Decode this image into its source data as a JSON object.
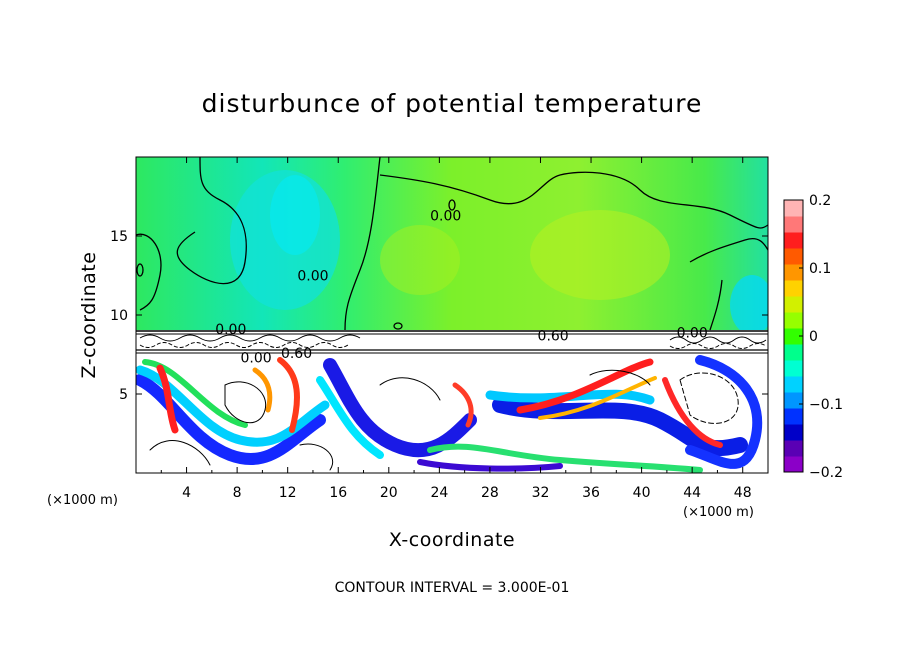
{
  "chart_data": {
    "type": "heatmap",
    "title": "disturbunce of potential temperature",
    "xlabel": "X-coordinate",
    "ylabel": "Z-coordinate",
    "x_unit_left": "(×1000 m)",
    "x_unit_right": "(×1000 m)",
    "xlim": [
      0,
      50
    ],
    "ylim": [
      0,
      20
    ],
    "x_ticks": [
      4,
      8,
      12,
      16,
      20,
      24,
      28,
      32,
      36,
      40,
      44,
      48
    ],
    "x_tick_labels": [
      "4",
      "8",
      "12",
      "16",
      "20",
      "24",
      "28",
      "32",
      "36",
      "40",
      "44",
      "48"
    ],
    "y_ticks": [
      5,
      10,
      15
    ],
    "y_tick_labels": [
      "5",
      "10",
      "15"
    ],
    "colorbar": {
      "range": [
        -0.2,
        0.2
      ],
      "ticks": [
        0.2,
        0.1,
        0,
        -0.1,
        -0.2
      ],
      "tick_labels": [
        "0.2",
        "0.1",
        "0",
        "−0.1",
        "−0.2"
      ],
      "colors": [
        "#8b00c8",
        "#5a00b4",
        "#0000c8",
        "#0032ff",
        "#0096ff",
        "#00d2ff",
        "#00ffd2",
        "#00ff8c",
        "#32ff00",
        "#96ff00",
        "#d2f000",
        "#ffd200",
        "#ff9600",
        "#ff5a00",
        "#ff1e1e",
        "#ff7878",
        "#ffb4b4"
      ]
    },
    "contour_labels": [
      {
        "text": "0.00",
        "x": 24.5,
        "y": 16.3
      },
      {
        "text": "0.00",
        "x": 14.0,
        "y": 12.5
      },
      {
        "text": "0.00",
        "x": 7.5,
        "y": 9.1
      },
      {
        "text": "0.00",
        "x": 9.5,
        "y": 7.3
      },
      {
        "text": "0.60",
        "x": 12.7,
        "y": 7.6
      },
      {
        "text": "0.60",
        "x": 33.0,
        "y": 8.7
      },
      {
        "text": "0.00",
        "x": 44.0,
        "y": 8.9
      }
    ],
    "contour_interval_text": "CONTOUR INTERVAL = 3.000E-01"
  }
}
